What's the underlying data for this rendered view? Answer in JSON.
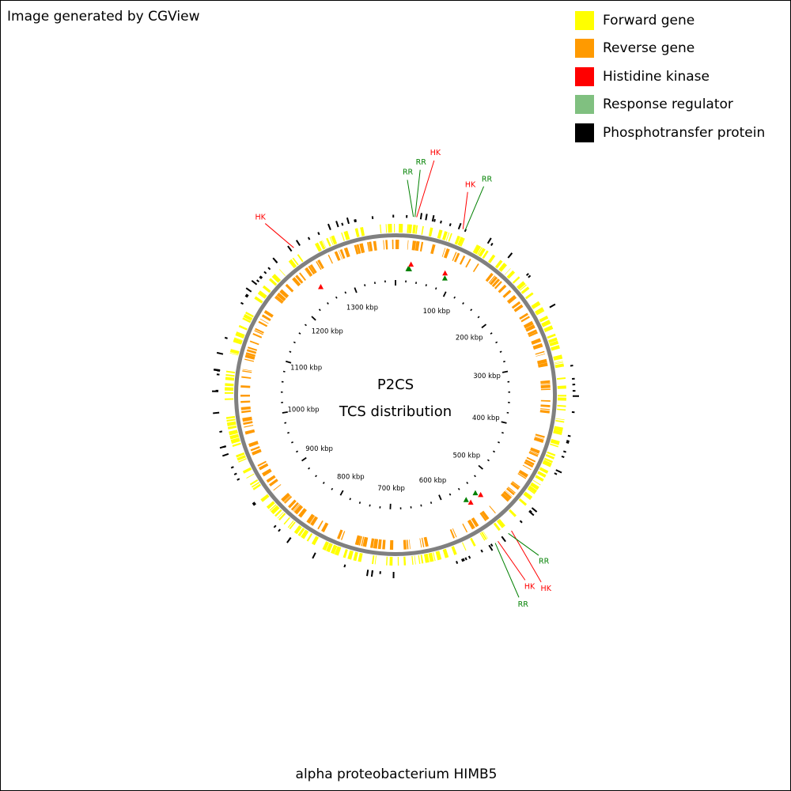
{
  "credit": "Image generated by CGView",
  "legend": [
    {
      "label": "Forward gene",
      "color": "#ffff00"
    },
    {
      "label": "Reverse gene",
      "color": "#ff9a00"
    },
    {
      "label": "Histidine kinase",
      "color": "#ff0000"
    },
    {
      "label": "Response regulator",
      "color": "#80c080"
    },
    {
      "label": "Phosphotransfer protein",
      "color": "#000000"
    }
  ],
  "map": {
    "title": "P2CS",
    "subtitle": "TCS distribution",
    "organism": "alpha proteobacterium HIMB5",
    "genome_length_kbp": 1380,
    "tick_labels": [
      "100 kbp",
      "200 kbp",
      "300 kbp",
      "400 kbp",
      "500 kbp",
      "600 kbp",
      "700 kbp",
      "800 kbp",
      "900 kbp",
      "1000 kbp",
      "1100 kbp",
      "1200 kbp",
      "1300 kbp"
    ],
    "tick_positions_kbp": [
      100,
      200,
      300,
      400,
      500,
      600,
      700,
      800,
      900,
      1000,
      1100,
      1200,
      1300
    ],
    "colors": {
      "forward": "#ffff00",
      "reverse": "#ff9a00",
      "hk": "#ff0000",
      "rr": "#008000",
      "backbone": "#808080"
    },
    "tcs_features": [
      {
        "label": "RR",
        "type": "RR",
        "kbp": 22
      },
      {
        "label": "RR",
        "type": "RR",
        "kbp": 24
      },
      {
        "label": "HK",
        "type": "HK",
        "kbp": 26
      },
      {
        "label": "HK",
        "type": "HK",
        "kbp": 85
      },
      {
        "label": "RR",
        "type": "RR",
        "kbp": 88
      },
      {
        "label": "HK",
        "type": "HK",
        "kbp": 535
      },
      {
        "label": "RR",
        "type": "RR",
        "kbp": 540
      },
      {
        "label": "HK",
        "type": "HK",
        "kbp": 556
      },
      {
        "label": "RR",
        "type": "RR",
        "kbp": 560
      },
      {
        "label": "HK",
        "type": "HK",
        "kbp": 1247
      }
    ]
  }
}
